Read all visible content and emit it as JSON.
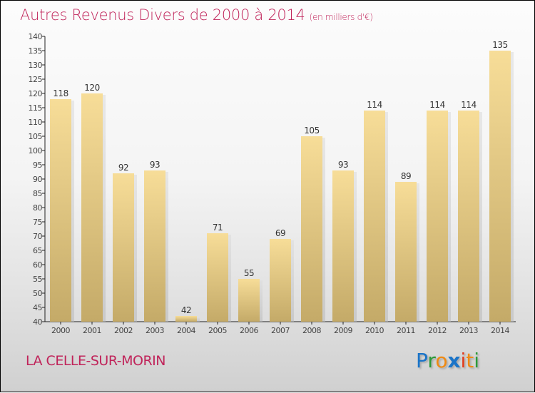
{
  "chart_data": {
    "type": "bar",
    "title": "Autres Revenus Divers de 2000 à 2014",
    "unit": "(en milliers d'€)",
    "categories": [
      "2000",
      "2001",
      "2002",
      "2003",
      "2004",
      "2005",
      "2006",
      "2007",
      "2008",
      "2009",
      "2010",
      "2011",
      "2012",
      "2013",
      "2014"
    ],
    "values": [
      118,
      120,
      92,
      93,
      42,
      71,
      55,
      69,
      105,
      93,
      114,
      89,
      114,
      114,
      135
    ],
    "ylim": [
      40,
      140
    ],
    "yticks": [
      40,
      45,
      50,
      55,
      60,
      65,
      70,
      75,
      80,
      85,
      90,
      95,
      100,
      105,
      110,
      115,
      120,
      125,
      130,
      135,
      140
    ],
    "xlabel": "",
    "ylabel": "",
    "grid": false
  },
  "town": "LA CELLE-SUR-MORIN",
  "logo": {
    "text": "Proxiti",
    "letters": [
      [
        "P",
        "#1a74c8"
      ],
      [
        "r",
        "#2c9a3a"
      ],
      [
        "o",
        "#f08a12"
      ],
      [
        "x",
        "#1a74c8"
      ],
      [
        "i",
        "#e23a1a"
      ],
      [
        "t",
        "#f08a12"
      ],
      [
        "i",
        "#2c9a3a"
      ]
    ]
  }
}
